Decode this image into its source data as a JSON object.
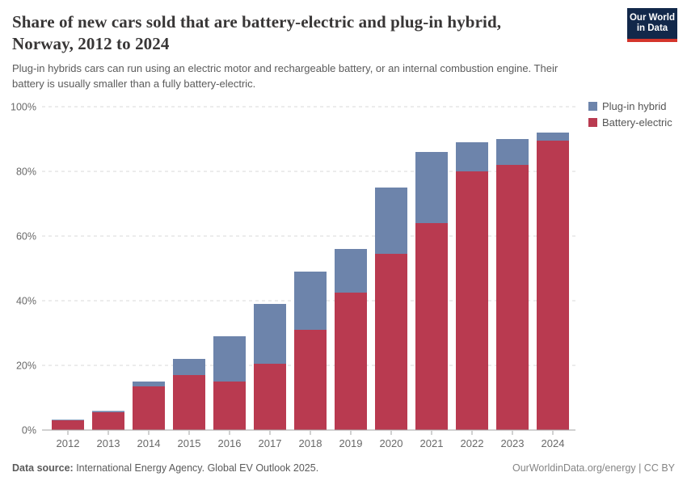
{
  "logo": {
    "line1": "Our World",
    "line2": "in Data"
  },
  "header": {
    "title_lines": [
      "Share of new cars sold that are battery-electric and plug-in hybrid,",
      "Norway, 2012 to 2024"
    ],
    "subtitle_lines": [
      "Plug-in hybrids cars can run using an electric motor and rechargeable battery, or an internal combustion engine. Their",
      "battery is usually smaller than a fully battery-electric."
    ]
  },
  "chart_data": {
    "type": "bar",
    "stacked": true,
    "title": "Share of new cars sold that are battery-electric and plug-in hybrid, Norway, 2012 to 2024",
    "categories": [
      "2012",
      "2013",
      "2014",
      "2015",
      "2016",
      "2017",
      "2018",
      "2019",
      "2020",
      "2021",
      "2022",
      "2023",
      "2024"
    ],
    "series": [
      {
        "name": "Battery-electric",
        "color": "#b93a50",
        "values": [
          3.0,
          5.5,
          13.5,
          17.0,
          15.0,
          20.5,
          31.0,
          42.5,
          54.5,
          64.0,
          80.0,
          82.0,
          89.5
        ]
      },
      {
        "name": "Plug-in hybrid",
        "color": "#6d84ab",
        "values": [
          0.2,
          0.4,
          1.5,
          5.0,
          14.0,
          18.5,
          18.0,
          13.5,
          20.5,
          22.0,
          9.0,
          8.0,
          2.5
        ]
      }
    ],
    "totals": [
      3.2,
      5.9,
      15.0,
      22.0,
      29.0,
      39.0,
      49.0,
      56.0,
      75.0,
      86.0,
      89.0,
      90.0,
      92.0
    ],
    "xlabel": "",
    "ylabel": "",
    "ylim": [
      0,
      100
    ],
    "yticks": [
      0,
      20,
      40,
      60,
      80,
      100
    ],
    "ytick_suffix": "%",
    "grid": true,
    "grid_style": "dashed",
    "legend_position": "top-right"
  },
  "legend": {
    "items": [
      {
        "label": "Plug-in hybrid",
        "color": "#6d84ab"
      },
      {
        "label": "Battery-electric",
        "color": "#b93a50"
      }
    ]
  },
  "footer": {
    "source_label": "Data source:",
    "source_text": " International Energy Agency. Global EV Outlook 2025.",
    "credit": "OurWorldinData.org/energy | CC BY"
  },
  "colors": {
    "battery_electric": "#b93a50",
    "plug_in_hybrid": "#6d84ab",
    "logo_bg": "#12284a",
    "logo_stripe": "#d4352b",
    "gridline": "#d9d9d9",
    "axis_line": "#a3a3a3",
    "tick_label": "#696969"
  }
}
